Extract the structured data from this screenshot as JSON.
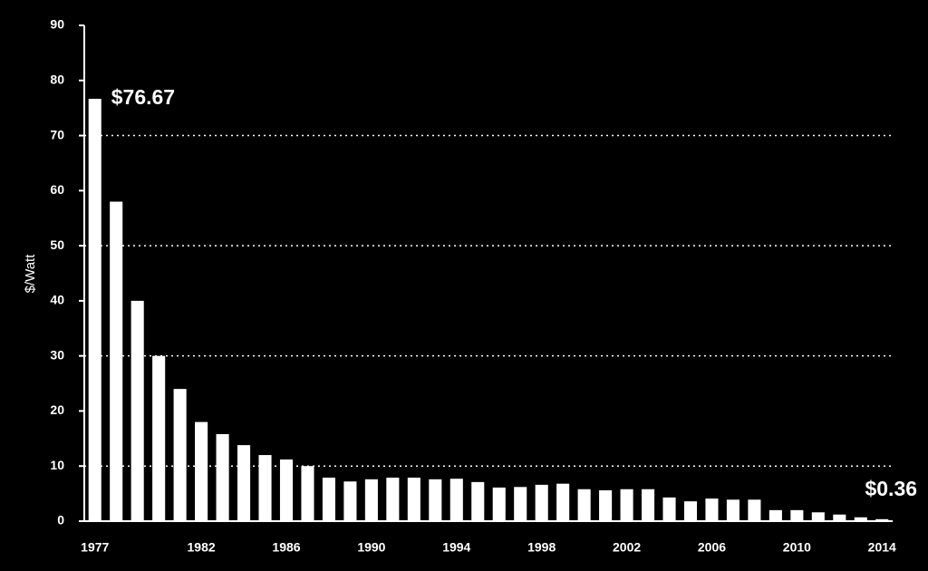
{
  "chart_data": {
    "type": "bar",
    "y_label": "$/Watt",
    "categories": [
      "1977",
      null,
      null,
      null,
      null,
      "1982",
      null,
      null,
      null,
      "1986",
      null,
      null,
      null,
      "1990",
      null,
      null,
      null,
      "1994",
      null,
      null,
      null,
      "1998",
      null,
      null,
      null,
      "2002",
      null,
      null,
      null,
      "2006",
      null,
      null,
      null,
      "2010",
      null,
      null,
      null,
      "2014"
    ],
    "values": [
      76.67,
      58,
      40,
      30,
      24,
      18,
      15.8,
      13.8,
      12,
      11.2,
      10,
      7.9,
      7.2,
      7.6,
      7.9,
      7.9,
      7.6,
      7.7,
      7.1,
      6.1,
      6.2,
      6.6,
      6.8,
      5.8,
      5.6,
      5.8,
      5.8,
      4.3,
      3.6,
      4.1,
      3.9,
      3.9,
      2,
      2,
      1.6,
      1.2,
      0.7,
      0.36
    ],
    "value_labels": [
      "$76.67",
      null,
      null,
      null,
      null,
      null,
      null,
      null,
      null,
      null,
      null,
      null,
      null,
      null,
      null,
      null,
      null,
      null,
      null,
      null,
      null,
      null,
      null,
      null,
      null,
      null,
      null,
      null,
      null,
      null,
      null,
      null,
      null,
      null,
      null,
      null,
      null,
      "$0.36"
    ],
    "color": "#ffffff",
    "ylim": [
      0,
      90
    ],
    "yticks": [
      0,
      10,
      20,
      30,
      40,
      50,
      60,
      70,
      80,
      90
    ],
    "gridlines": [
      10,
      30,
      50,
      70
    ]
  }
}
